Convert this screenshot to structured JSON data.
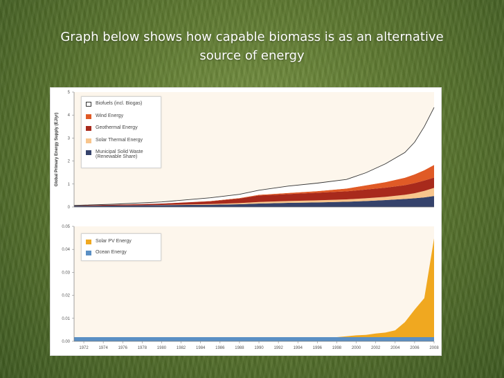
{
  "slide": {
    "title_line1": "Graph below shows how capable biomass is as an alternative",
    "title_line2": "source of energy"
  },
  "chart_data": [
    {
      "type": "area",
      "stacked": true,
      "ylabel": "Global Primary Energy Supply (EJ/yr)",
      "ylim": [
        0,
        5
      ],
      "yticks": [
        0,
        1,
        2,
        3,
        4,
        5
      ],
      "xlim": [
        1971,
        2008
      ],
      "x": [
        1971,
        1975,
        1980,
        1985,
        1988,
        1990,
        1993,
        1996,
        1999,
        2001,
        2003,
        2005,
        2006,
        2007,
        2008
      ],
      "legend_position": "top-left",
      "series": [
        {
          "name": "Municipal Solid Waste (Renewable Share)",
          "color": "#35426b",
          "values": [
            0.05,
            0.06,
            0.08,
            0.1,
            0.12,
            0.15,
            0.18,
            0.2,
            0.23,
            0.26,
            0.3,
            0.35,
            0.38,
            0.42,
            0.48
          ]
        },
        {
          "name": "Solar Thermal Energy",
          "color": "#f8c58c",
          "values": [
            0.0,
            0.0,
            0.01,
            0.03,
            0.05,
            0.07,
            0.08,
            0.09,
            0.1,
            0.12,
            0.14,
            0.18,
            0.22,
            0.28,
            0.35
          ]
        },
        {
          "name": "Geothermal Energy",
          "color": "#a82a1c",
          "values": [
            0.02,
            0.04,
            0.06,
            0.12,
            0.2,
            0.28,
            0.3,
            0.33,
            0.35,
            0.38,
            0.4,
            0.42,
            0.44,
            0.45,
            0.45
          ]
        },
        {
          "name": "Wind Energy",
          "color": "#e05a26",
          "values": [
            0.0,
            0.0,
            0.0,
            0.01,
            0.02,
            0.03,
            0.05,
            0.07,
            0.12,
            0.18,
            0.24,
            0.32,
            0.38,
            0.45,
            0.55
          ]
        },
        {
          "name": "Biofuels (incl. Biogas)",
          "color": "#ffffff",
          "stroke": "#333333",
          "values": [
            0.0,
            0.02,
            0.07,
            0.14,
            0.16,
            0.2,
            0.3,
            0.35,
            0.4,
            0.55,
            0.8,
            1.1,
            1.4,
            1.9,
            2.5
          ]
        }
      ]
    },
    {
      "type": "area",
      "stacked": true,
      "xlabel": "",
      "ylim": [
        0,
        0.05
      ],
      "yticks": [
        0.0,
        0.01,
        0.02,
        0.03,
        0.04,
        0.05
      ],
      "ytick_labels": [
        "0.00",
        "0.01",
        "0.02",
        "0.03",
        "0.04",
        "0.05"
      ],
      "xlim": [
        1971,
        2008
      ],
      "x": [
        1971,
        1998,
        1999,
        2000,
        2001,
        2002,
        2003,
        2004,
        2005,
        2006,
        2007,
        2008
      ],
      "xticks": [
        1972,
        1974,
        1976,
        1978,
        1980,
        1982,
        1984,
        1986,
        1988,
        1990,
        1992,
        1994,
        1996,
        1998,
        2000,
        2002,
        2004,
        2006,
        2008
      ],
      "legend_position": "top-left",
      "series": [
        {
          "name": "Ocean Energy",
          "color": "#5a8fc4",
          "values": [
            0.0018,
            0.0018,
            0.0018,
            0.0018,
            0.0018,
            0.0018,
            0.0018,
            0.0018,
            0.0018,
            0.0018,
            0.0018,
            0.0018
          ]
        },
        {
          "name": "Solar PV Energy",
          "color": "#f0a820",
          "values": [
            0.0,
            0.0,
            0.0004,
            0.0008,
            0.001,
            0.0016,
            0.002,
            0.003,
            0.0065,
            0.012,
            0.017,
            0.043
          ]
        }
      ]
    }
  ]
}
